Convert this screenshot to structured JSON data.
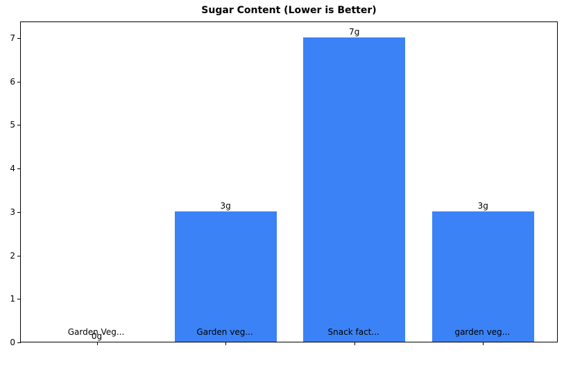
{
  "chart_data": {
    "type": "bar",
    "title": "Sugar Content (Lower is Better)",
    "xlabel": "",
    "ylabel": "",
    "categories": [
      "Garden Veg...",
      "Garden veg...",
      "Snack fact...",
      "garden veg..."
    ],
    "values": [
      0,
      3,
      7,
      3
    ],
    "data_labels": [
      "0g",
      "3g",
      "7g",
      "3g"
    ],
    "yticks": [
      0,
      1,
      2,
      3,
      4,
      5,
      6,
      7
    ],
    "ylim": [
      0,
      7.35
    ],
    "grid": false,
    "legend": null,
    "bar_color": "#3b82f6"
  }
}
